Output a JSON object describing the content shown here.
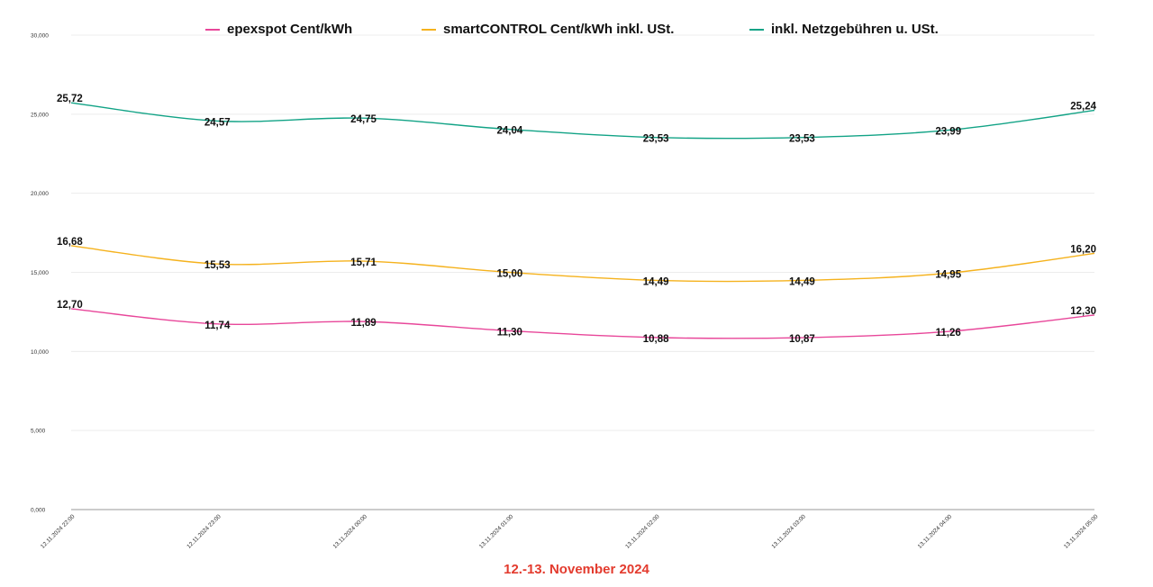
{
  "chart_data": {
    "type": "line",
    "title": "12.-13.  November 2024",
    "title_color": "#e33b2e",
    "categories": [
      "12.11.2024 22:00",
      "12.11.2024 23:00",
      "13.11.2024 00:00",
      "13.11.2024 01:00",
      "13.11.2024 02:00",
      "13.11.2024 03:00",
      "13.11.2024 04:00",
      "13.11.2024 05:00"
    ],
    "ylim": [
      0,
      30
    ],
    "yticks": [
      "0,000",
      "5,000",
      "10,000",
      "15,000",
      "20,000",
      "25,000",
      "30,000"
    ],
    "grid": true,
    "legend_position": "top",
    "series": [
      {
        "name": "epexspot Cent/kWh",
        "color": "#e8479a",
        "values": [
          12.7,
          11.74,
          11.89,
          11.3,
          10.88,
          10.87,
          11.26,
          12.3
        ],
        "labels": [
          "12,70",
          "11,74",
          "11,89",
          "11,30",
          "10,88",
          "10,87",
          "11,26",
          "12,30"
        ]
      },
      {
        "name": "smartCONTROL Cent/kWh inkl. USt.",
        "color": "#f5b21d",
        "values": [
          16.68,
          15.53,
          15.71,
          15.0,
          14.49,
          14.49,
          14.95,
          16.2
        ],
        "labels": [
          "16,68",
          "15,53",
          "15,71",
          "15,00",
          "14,49",
          "14,49",
          "14,95",
          "16,20"
        ]
      },
      {
        "name": "inkl. Netzgebühren u. USt.",
        "color": "#12a386",
        "values": [
          25.72,
          24.57,
          24.75,
          24.04,
          23.53,
          23.53,
          23.99,
          25.24
        ],
        "labels": [
          "25,72",
          "24,57",
          "24,75",
          "24,04",
          "23,53",
          "23,53",
          "23,99",
          "25,24"
        ]
      }
    ]
  }
}
